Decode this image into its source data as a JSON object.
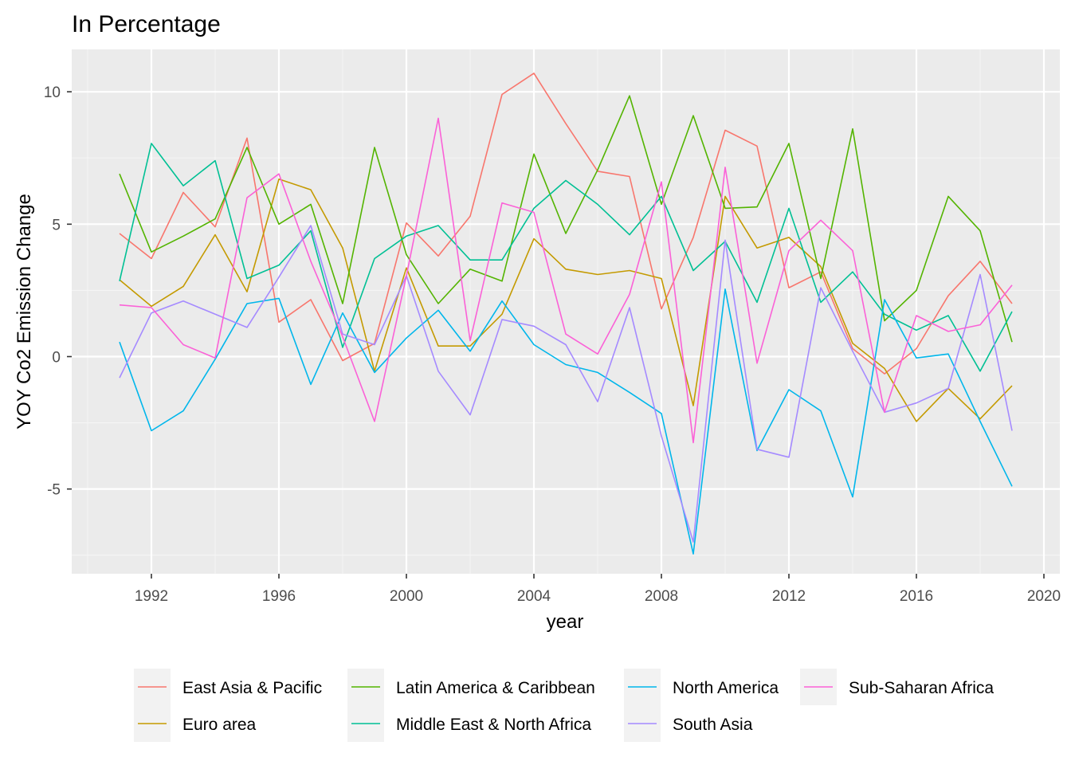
{
  "chart_data": {
    "type": "line",
    "title": "In Percentage",
    "xlabel": "year",
    "ylabel": "YOY Co2 Emission Change",
    "xlim": [
      1989.5,
      2020.5
    ],
    "ylim": [
      -8.2,
      11.6
    ],
    "x_ticks": [
      1992,
      1996,
      2000,
      2004,
      2008,
      2012,
      2016,
      2020
    ],
    "y_ticks": [
      -5,
      0,
      5,
      10
    ],
    "y_tick_labels": [
      "-5",
      "0",
      "5",
      "10"
    ],
    "grid": true,
    "legend_position": "bottom",
    "x": [
      1991,
      1992,
      1993,
      1994,
      1995,
      1996,
      1997,
      1998,
      1999,
      2000,
      2001,
      2002,
      2003,
      2004,
      2005,
      2006,
      2007,
      2008,
      2009,
      2010,
      2011,
      2012,
      2013,
      2014,
      2015,
      2016,
      2017,
      2018,
      2019
    ],
    "series": [
      {
        "name": "East Asia & Pacific",
        "color": "#F8766D",
        "values": [
          4.65,
          3.7,
          6.2,
          4.9,
          8.25,
          1.3,
          2.15,
          -0.15,
          0.5,
          5.05,
          3.8,
          5.3,
          9.9,
          10.7,
          8.8,
          7.0,
          6.8,
          1.8,
          4.5,
          8.55,
          7.95,
          2.6,
          3.2,
          0.3,
          -0.65,
          0.3,
          2.3,
          3.6,
          2.0
        ]
      },
      {
        "name": "Euro area",
        "color": "#C49A00",
        "values": [
          2.9,
          1.9,
          2.65,
          4.6,
          2.45,
          6.7,
          6.3,
          4.1,
          -0.55,
          3.35,
          0.4,
          0.4,
          1.6,
          4.45,
          3.3,
          3.1,
          3.25,
          2.95,
          -1.85,
          6.05,
          4.1,
          4.5,
          3.4,
          0.5,
          -0.45,
          -2.45,
          -1.2,
          -2.35,
          -1.1
        ]
      },
      {
        "name": "Latin America & Caribbean",
        "color": "#53B400",
        "values": [
          6.9,
          3.95,
          4.55,
          5.2,
          7.9,
          5.0,
          5.75,
          2.0,
          7.9,
          3.85,
          2.0,
          3.3,
          2.85,
          7.65,
          4.65,
          7.05,
          9.85,
          5.75,
          9.1,
          5.6,
          5.65,
          8.05,
          2.95,
          8.6,
          1.35,
          2.5,
          6.05,
          4.75,
          0.55
        ]
      },
      {
        "name": "Middle East & North Africa",
        "color": "#00C094",
        "values": [
          2.85,
          8.05,
          6.45,
          7.4,
          2.95,
          3.45,
          4.75,
          0.35,
          3.7,
          4.55,
          4.95,
          3.65,
          3.65,
          5.6,
          6.65,
          5.75,
          4.6,
          6.05,
          3.25,
          4.35,
          2.05,
          5.6,
          2.05,
          3.2,
          1.6,
          1.0,
          1.55,
          -0.55,
          1.7
        ]
      },
      {
        "name": "North America",
        "color": "#00B6EB",
        "values": [
          0.55,
          -2.8,
          -2.05,
          -0.1,
          2.0,
          2.2,
          -1.05,
          1.65,
          -0.6,
          0.7,
          1.75,
          0.2,
          2.1,
          0.45,
          -0.3,
          -0.6,
          -1.35,
          -2.15,
          -7.45,
          2.55,
          -3.55,
          -1.25,
          -2.05,
          -5.3,
          2.15,
          -0.05,
          0.1,
          -2.45,
          -4.9
        ]
      },
      {
        "name": "South Asia",
        "color": "#A58AFF",
        "values": [
          -0.8,
          1.65,
          2.1,
          1.6,
          1.1,
          3.0,
          4.95,
          0.85,
          0.45,
          3.05,
          -0.55,
          -2.2,
          1.4,
          1.15,
          0.45,
          -1.7,
          1.85,
          -3.0,
          -7.0,
          4.4,
          -3.5,
          -3.8,
          2.6,
          0.2,
          -2.1,
          -1.75,
          -1.2,
          3.1,
          -2.8
        ]
      },
      {
        "name": "Sub-Saharan Africa",
        "color": "#FB61D7",
        "values": [
          1.95,
          1.85,
          0.45,
          -0.05,
          6.0,
          6.9,
          3.6,
          0.75,
          -2.45,
          3.05,
          9.0,
          0.6,
          5.8,
          5.45,
          0.85,
          0.1,
          2.35,
          6.6,
          -3.25,
          7.15,
          -0.25,
          4.0,
          5.15,
          4.0,
          -2.1,
          1.55,
          0.95,
          1.2,
          2.7
        ]
      }
    ],
    "legend_layout": [
      [
        "East Asia & Pacific",
        "Latin America & Caribbean",
        "North America",
        "Sub-Saharan Africa"
      ],
      [
        "Euro area",
        "Middle East & North Africa",
        "South Asia"
      ]
    ]
  },
  "colors": {
    "panel_background": "#EBEBEB",
    "grid_major": "#FFFFFF",
    "grid_minor": "#F5F5F5",
    "legend_key_background": "#F2F2F2"
  }
}
